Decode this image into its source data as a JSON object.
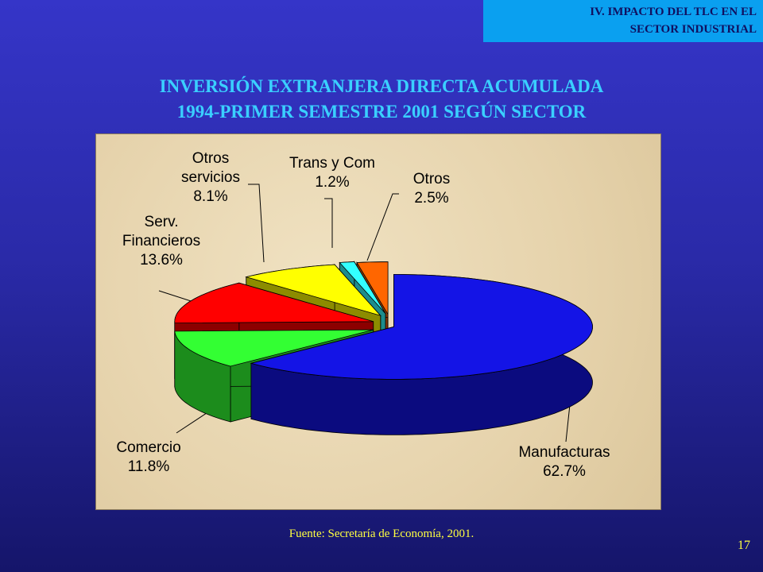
{
  "header": {
    "section": "IV. IMPACTO DEL TLC EN EL SECTOR INDUSTRIAL"
  },
  "chart_data": {
    "type": "pie",
    "title": [
      "INVERSIÓN EXTRANJERA DIRECTA ACUMULADA",
      "1994-PRIMER SEMESTRE 2001 SEGÚN SECTOR"
    ],
    "categories": [
      "Manufacturas",
      "Comercio",
      "Serv. Financieros",
      "Otros servicios",
      "Trans y Com",
      "Otros"
    ],
    "values": [
      62.7,
      11.8,
      13.6,
      8.1,
      1.2,
      2.5
    ],
    "value_labels": [
      "62.7%",
      "11.8%",
      "13.6%",
      "8.1%",
      "1.2%",
      "2.5%"
    ],
    "colors": [
      "#1414e6",
      "#33ff33",
      "#ff0000",
      "#ffff00",
      "#33ffff",
      "#ff6600"
    ]
  },
  "footer": {
    "source": "Fuente: Secretaría de Economía, 2001.",
    "page": "17"
  }
}
